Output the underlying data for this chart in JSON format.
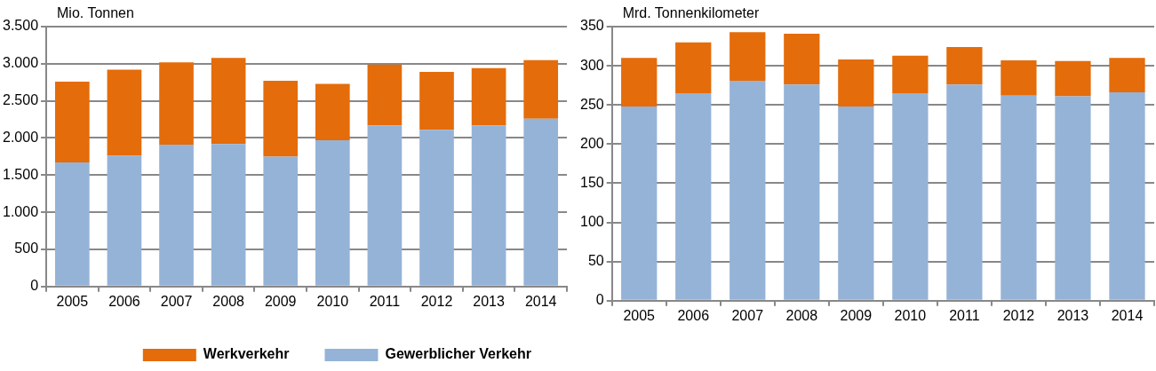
{
  "chart_data": [
    {
      "type": "bar",
      "stacked": true,
      "ylabel": "Mio. Tonnen",
      "categories": [
        "2005",
        "2006",
        "2007",
        "2008",
        "2009",
        "2010",
        "2011",
        "2012",
        "2013",
        "2014"
      ],
      "series": [
        {
          "name": "Gewerblicher Verkehr",
          "color": "#95b3d7",
          "values": [
            1670,
            1760,
            1910,
            1920,
            1750,
            1970,
            2170,
            2110,
            2170,
            2260
          ]
        },
        {
          "name": "Werkverkehr",
          "color": "#e46c0a",
          "values": [
            1090,
            1160,
            1110,
            1160,
            1020,
            760,
            820,
            780,
            770,
            790
          ]
        }
      ],
      "ylim": [
        0,
        3500
      ],
      "yticks": [
        0,
        500,
        {
          "value": 1000,
          "label": "1.000"
        },
        {
          "value": 1500,
          "label": "1.500"
        },
        {
          "value": 2000,
          "label": "2.000"
        },
        {
          "value": 2500,
          "label": "2.500"
        },
        {
          "value": 3000,
          "label": "3.000"
        },
        {
          "value": 3500,
          "label": "3.500"
        }
      ],
      "grid": "y",
      "legend": "bottom"
    },
    {
      "type": "bar",
      "stacked": true,
      "ylabel": "Mrd. Tonnenkilometer",
      "categories": [
        "2005",
        "2006",
        "2007",
        "2008",
        "2009",
        "2010",
        "2011",
        "2012",
        "2013",
        "2014"
      ],
      "series": [
        {
          "color": "#95b3d7",
          "values": [
            248,
            265,
            281,
            276,
            248,
            265,
            276,
            262,
            261,
            266
          ]
        },
        {
          "color": "#e46c0a",
          "values": [
            62,
            65,
            62,
            65,
            60,
            48,
            48,
            45,
            45,
            44
          ]
        }
      ],
      "ylim": [
        0,
        350
      ],
      "yticks": [
        0,
        50,
        100,
        150,
        200,
        250,
        300,
        350
      ],
      "grid": "y"
    }
  ]
}
